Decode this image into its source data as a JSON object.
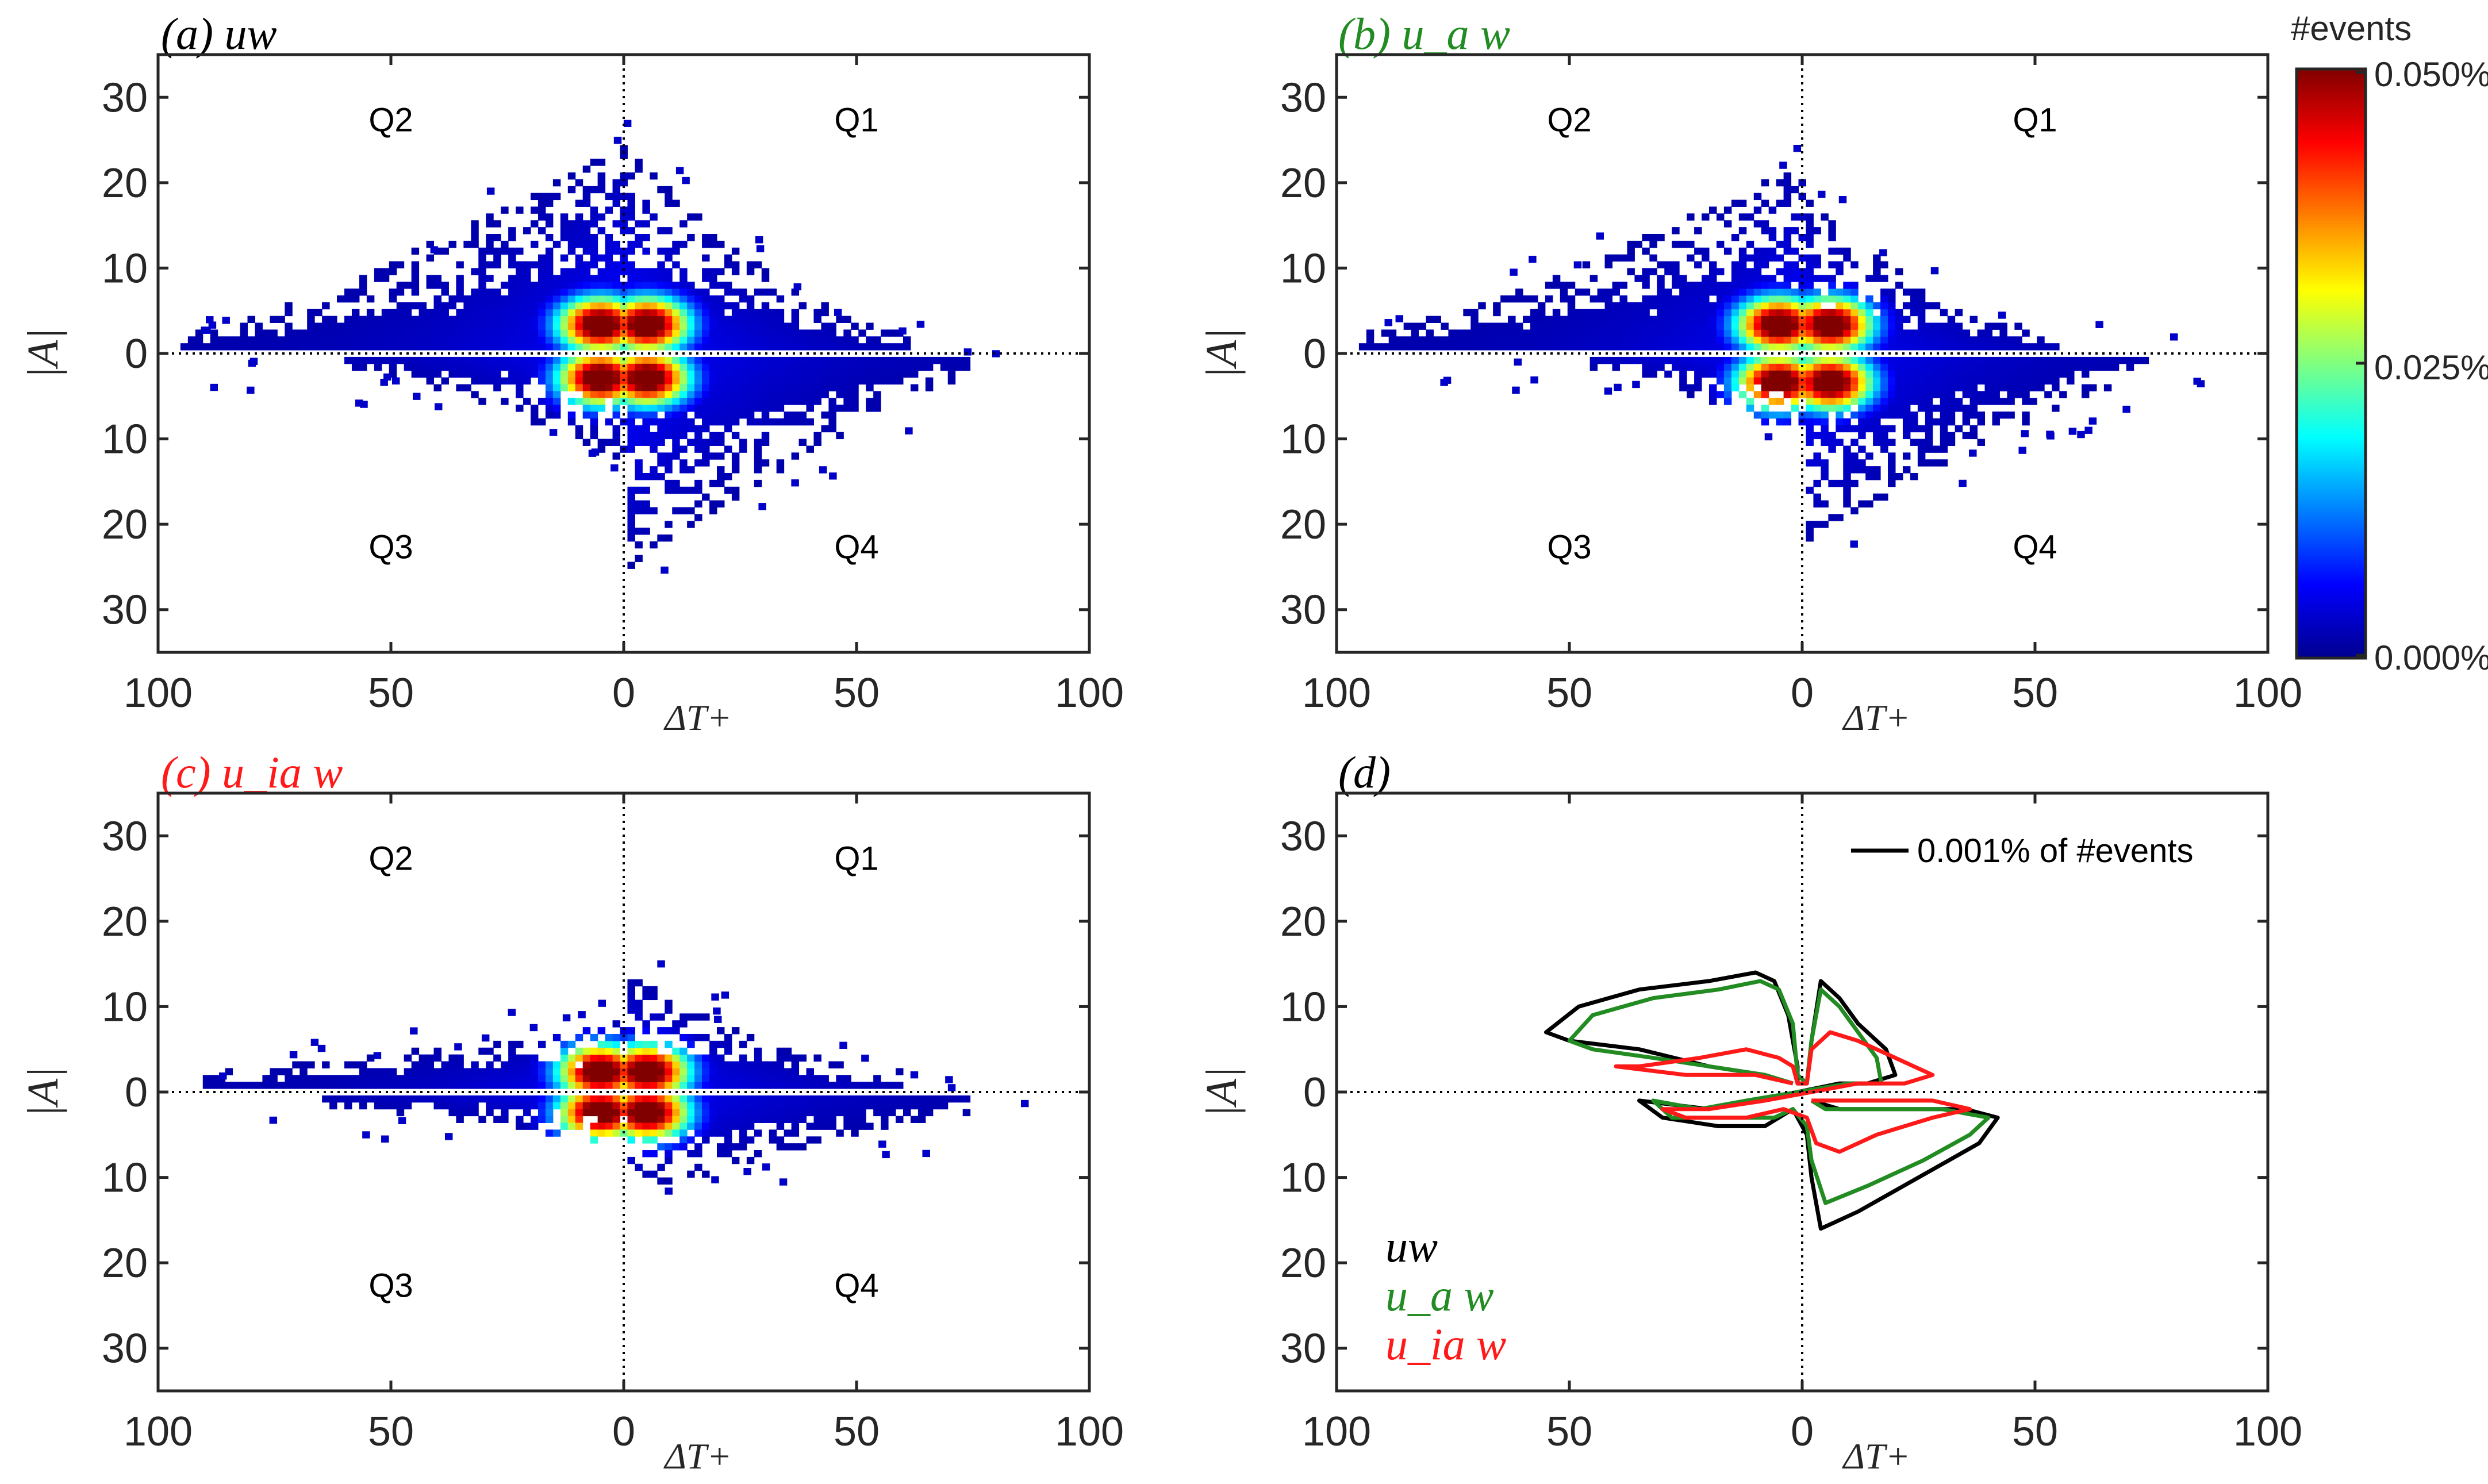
{
  "colors": {
    "uw": "#000000",
    "uaw": "#228b22",
    "uiaw": "#ff1a1a",
    "axis": "#262626",
    "scatter_low": "#00008f",
    "scatter_high": "#800000"
  },
  "colorbar": {
    "title": "#events",
    "ticks": [
      "0.050%",
      "0.025%",
      "0.000%"
    ],
    "range": [
      0.0,
      0.05
    ],
    "unit": "%"
  },
  "chart_data": [
    {
      "id": "a",
      "type": "heatmap",
      "title": "(a) uw",
      "title_color": "#000000",
      "xlabel": "ΔT+",
      "ylabel": "|A|",
      "xlim": [
        -100,
        100
      ],
      "ylim": [
        -35,
        35
      ],
      "x_tick_labels": [
        "100",
        "50",
        "0",
        "50",
        "100"
      ],
      "y_tick_labels": [
        "30",
        "20",
        "10",
        "0",
        "10",
        "20",
        "30"
      ],
      "quadrant_labels": {
        "Q2": "Q2",
        "Q1": "Q1",
        "Q3": "Q3",
        "Q4": "Q4"
      },
      "extent": {
        "q2_left": -95,
        "q2_top": 24,
        "q1_right": 62,
        "q1_top": 24,
        "q3_left": -60,
        "q3_bottom": -12,
        "q4_right": 75,
        "q4_bottom": -25
      },
      "core": {
        "upper_amp": 3,
        "lower_amp": 2.5,
        "center_left": -5,
        "center_right": 5
      }
    },
    {
      "id": "b",
      "type": "heatmap",
      "title": "(b) u_a w",
      "title_color": "#228b22",
      "xlabel": "ΔT+",
      "ylabel": "|A|",
      "xlim": [
        -100,
        100
      ],
      "ylim": [
        -35,
        35
      ],
      "x_tick_labels": [
        "100",
        "50",
        "0",
        "50",
        "100"
      ],
      "y_tick_labels": [
        "30",
        "20",
        "10",
        "0",
        "10",
        "20",
        "30"
      ],
      "quadrant_labels": {
        "Q2": "Q2",
        "Q1": "Q1",
        "Q3": "Q3",
        "Q4": "Q4"
      },
      "extent": {
        "q2_left": -95,
        "q2_top": 22,
        "q1_right": 55,
        "q1_top": 18,
        "q3_left": -45,
        "q3_bottom": -10,
        "q4_right": 75,
        "q4_bottom": -22
      },
      "core": {
        "upper_amp": 3,
        "lower_amp": 3,
        "center_left": -5,
        "center_right": 6
      }
    },
    {
      "id": "c",
      "type": "heatmap",
      "title": "(c) u_ia w",
      "title_color": "#ff1a1a",
      "xlabel": "ΔT+",
      "ylabel": "|A|",
      "xlim": [
        -100,
        100
      ],
      "ylim": [
        -35,
        35
      ],
      "x_tick_labels": [
        "100",
        "50",
        "0",
        "50",
        "100"
      ],
      "y_tick_labels": [
        "30",
        "20",
        "10",
        "0",
        "10",
        "20",
        "30"
      ],
      "quadrant_labels": {
        "Q2": "Q2",
        "Q1": "Q1",
        "Q3": "Q3",
        "Q4": "Q4"
      },
      "extent": {
        "q2_left": -90,
        "q2_top": 8,
        "q1_right": 60,
        "q1_top": 14,
        "q3_left": -65,
        "q3_bottom": -6,
        "q4_right": 75,
        "q4_bottom": -12
      },
      "core": {
        "upper_amp": 2,
        "lower_amp": 2,
        "center_left": -5,
        "center_right": 5
      }
    },
    {
      "id": "d",
      "type": "line",
      "title": "(d)",
      "title_color": "#000000",
      "xlabel": "ΔT+",
      "ylabel": "|A|",
      "xlim": [
        -100,
        100
      ],
      "ylim": [
        -35,
        35
      ],
      "x_tick_labels": [
        "100",
        "50",
        "0",
        "50",
        "100"
      ],
      "y_tick_labels": [
        "30",
        "20",
        "10",
        "0",
        "10",
        "20",
        "30"
      ],
      "legend_text": "0.001% of #events",
      "legend_position": "top-right",
      "series": [
        {
          "name": "uw",
          "color": "#000000",
          "points": [
            [
              -2,
              1
            ],
            [
              -8,
              2
            ],
            [
              -20,
              3
            ],
            [
              -35,
              5
            ],
            [
              -50,
              6
            ],
            [
              -55,
              7
            ],
            [
              -48,
              10
            ],
            [
              -35,
              12
            ],
            [
              -20,
              13
            ],
            [
              -10,
              14
            ],
            [
              -6,
              13
            ],
            [
              -3,
              9
            ],
            [
              -1,
              3
            ],
            [
              -1,
              1
            ],
            [
              1,
              1
            ],
            [
              2,
              6
            ],
            [
              4,
              13
            ],
            [
              8,
              11
            ],
            [
              12,
              8
            ],
            [
              18,
              5
            ],
            [
              20,
              2
            ],
            [
              14,
              1
            ],
            [
              8,
              1
            ],
            [
              -10,
              -1
            ],
            [
              -20,
              -2
            ],
            [
              -35,
              -1
            ],
            [
              -30,
              -3
            ],
            [
              -18,
              -4
            ],
            [
              -8,
              -4
            ],
            [
              -2,
              -2
            ],
            [
              1,
              -5
            ],
            [
              2,
              -10
            ],
            [
              4,
              -16
            ],
            [
              12,
              -14
            ],
            [
              25,
              -10
            ],
            [
              38,
              -6
            ],
            [
              42,
              -3
            ],
            [
              35,
              -2
            ],
            [
              20,
              -2
            ],
            [
              8,
              -2
            ],
            [
              2,
              -1
            ]
          ]
        },
        {
          "name": "u_a w",
          "color": "#228b22",
          "points": [
            [
              -2,
              1
            ],
            [
              -8,
              2
            ],
            [
              -20,
              3
            ],
            [
              -32,
              4
            ],
            [
              -45,
              5
            ],
            [
              -50,
              6
            ],
            [
              -45,
              9
            ],
            [
              -32,
              11
            ],
            [
              -18,
              12
            ],
            [
              -9,
              13
            ],
            [
              -5,
              12
            ],
            [
              -2,
              8
            ],
            [
              -1,
              2
            ],
            [
              1,
              1
            ],
            [
              2,
              6
            ],
            [
              4,
              12
            ],
            [
              8,
              10
            ],
            [
              12,
              7
            ],
            [
              16,
              4
            ],
            [
              17,
              1
            ],
            [
              10,
              1
            ],
            [
              -12,
              -1
            ],
            [
              -22,
              -2
            ],
            [
              -32,
              -1
            ],
            [
              -28,
              -3
            ],
            [
              -16,
              -3
            ],
            [
              -6,
              -3
            ],
            [
              -2,
              -2
            ],
            [
              1,
              -4
            ],
            [
              2,
              -8
            ],
            [
              5,
              -13
            ],
            [
              14,
              -11
            ],
            [
              26,
              -8
            ],
            [
              36,
              -5
            ],
            [
              40,
              -3
            ],
            [
              30,
              -2
            ],
            [
              15,
              -2
            ],
            [
              5,
              -2
            ],
            [
              2,
              -1
            ]
          ]
        },
        {
          "name": "u_ia w",
          "color": "#ff1a1a",
          "points": [
            [
              -2,
              1
            ],
            [
              -10,
              2
            ],
            [
              -25,
              2
            ],
            [
              -40,
              3
            ],
            [
              -35,
              3
            ],
            [
              -22,
              4
            ],
            [
              -12,
              5
            ],
            [
              -5,
              4
            ],
            [
              -2,
              3
            ],
            [
              -1,
              1
            ],
            [
              1,
              1
            ],
            [
              2,
              5
            ],
            [
              6,
              7
            ],
            [
              12,
              6
            ],
            [
              20,
              4
            ],
            [
              28,
              2
            ],
            [
              22,
              1
            ],
            [
              12,
              1
            ],
            [
              -8,
              -1
            ],
            [
              -20,
              -2
            ],
            [
              -30,
              -2
            ],
            [
              -25,
              -3
            ],
            [
              -12,
              -3
            ],
            [
              -4,
              -2
            ],
            [
              1,
              -3
            ],
            [
              3,
              -6
            ],
            [
              8,
              -7
            ],
            [
              16,
              -5
            ],
            [
              28,
              -3
            ],
            [
              36,
              -2
            ],
            [
              28,
              -1
            ],
            [
              15,
              -1
            ],
            [
              5,
              -1
            ],
            [
              2,
              -1
            ]
          ]
        }
      ],
      "inline_legend": [
        "uw",
        "u_a w",
        "u_ia w"
      ]
    }
  ]
}
